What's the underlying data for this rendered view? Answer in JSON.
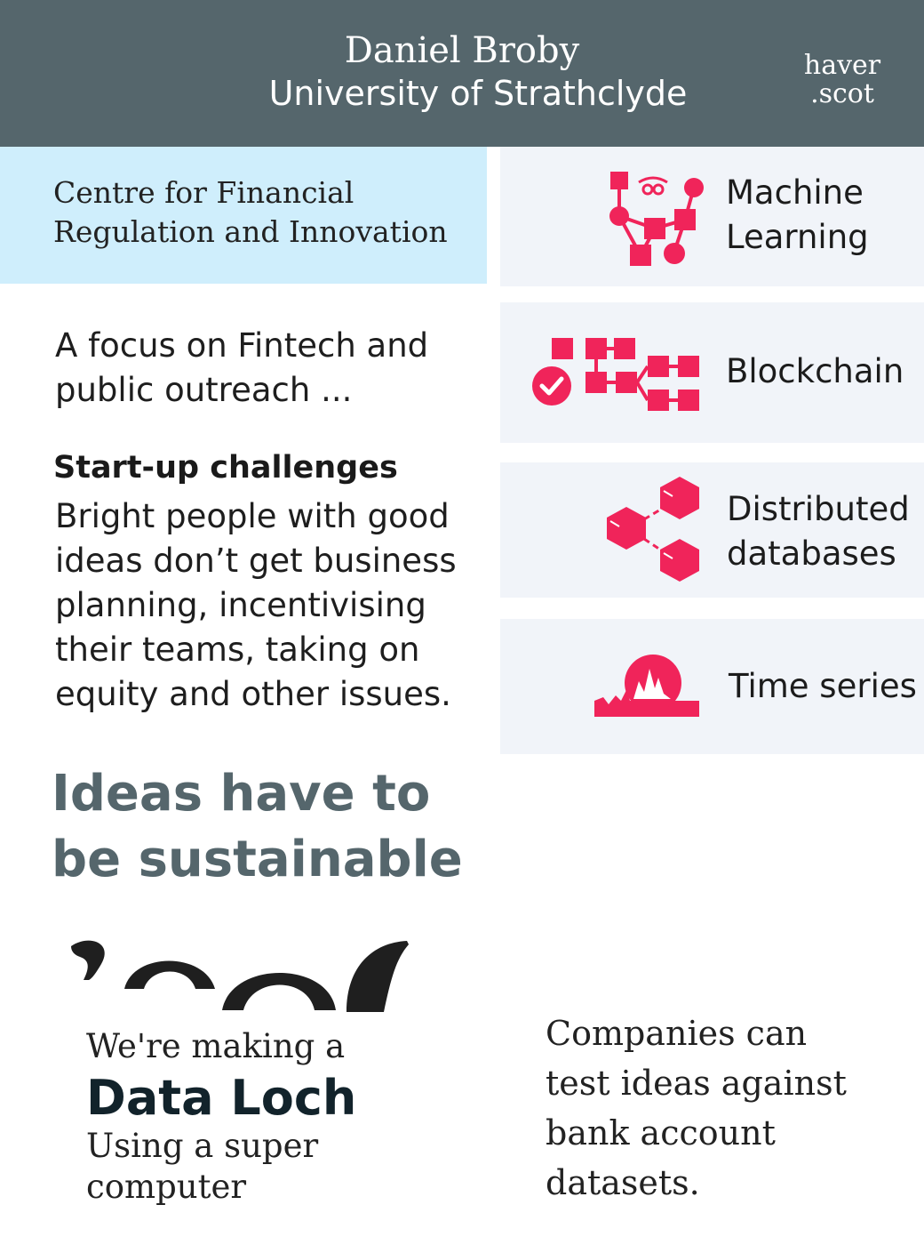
{
  "header": {
    "name": "Daniel Broby",
    "university": "University of Strathclyde",
    "logo_line1": "haver",
    "logo_line2": ".scot",
    "background": "#55666c"
  },
  "centre": {
    "line1": "Centre for Financial",
    "line2": "Regulation and Innovation",
    "background": "#cfeefc"
  },
  "topics": [
    {
      "line1": "Machine",
      "line2": "Learning",
      "icon": "network-graph-icon"
    },
    {
      "line1": "Blockchain",
      "icon": "blockchain-icon"
    },
    {
      "line1": "Distributed",
      "line2": "databases",
      "icon": "cubes-icon"
    },
    {
      "line1": "Time series",
      "icon": "time-series-icon"
    }
  ],
  "accent_color": "#f0245a",
  "focus": {
    "line1": "A focus on Fintech and",
    "line2": "public outreach ..."
  },
  "challenges": {
    "title": "Start-up challenges",
    "lines": [
      "Bright people with good",
      "ideas don’t get business",
      "planning, incentivising",
      "their teams, taking on",
      "equity and other issues."
    ]
  },
  "ideas": {
    "line1": "Ideas have to",
    "line2": "be sustainable",
    "color": "#55666c"
  },
  "data_loch": {
    "intro": "We're making a",
    "title": "Data Loch",
    "line1": "Using a super",
    "line2": "computer"
  },
  "companies": {
    "lines": [
      "Companies can",
      "test ideas against",
      "bank account",
      "datasets."
    ]
  }
}
